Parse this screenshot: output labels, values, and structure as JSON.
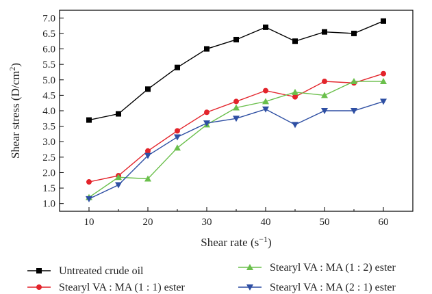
{
  "chart_data": {
    "type": "line",
    "xlabel": "Shear rate (s",
    "xlabel_sup": "−1",
    "xlabel_end": ")",
    "ylabel": "Shear stress (D/cm",
    "ylabel_sup": "2",
    "ylabel_end": ")",
    "xlim": [
      5,
      65
    ],
    "ylim": [
      0.75,
      7.25
    ],
    "x_ticks": [
      10,
      20,
      30,
      40,
      50,
      60
    ],
    "x_tick_labels": [
      "10",
      "20",
      "30",
      "40",
      "50",
      "60"
    ],
    "y_ticks": [
      1.0,
      1.5,
      2.0,
      2.5,
      3.0,
      3.5,
      4.0,
      4.5,
      5.0,
      5.5,
      6.0,
      6.5,
      7.0
    ],
    "y_tick_labels": [
      "1.0",
      "1.5",
      "2.0",
      "2.5",
      "3.0",
      "3.5",
      "4.0",
      "4.5",
      "5.0",
      "5.5",
      "6.0",
      "6.5",
      "7.0"
    ],
    "grid": false,
    "legend_position": "bottom",
    "x": [
      10,
      15,
      20,
      25,
      30,
      35,
      40,
      45,
      50,
      55,
      60
    ],
    "series": [
      {
        "name": "Untreated crude oil",
        "color": "#000000",
        "marker": "square",
        "values": [
          3.7,
          3.9,
          4.7,
          5.4,
          6.0,
          6.3,
          6.7,
          6.25,
          6.55,
          6.5,
          6.9
        ]
      },
      {
        "name": "Stearyl VA : MA (1 : 1) ester",
        "color": "#e3242b",
        "marker": "circle",
        "values": [
          1.7,
          1.9,
          2.7,
          3.35,
          3.95,
          4.3,
          4.65,
          4.45,
          4.95,
          4.9,
          5.2
        ]
      },
      {
        "name": "Stearyl VA : MA (1 : 2) ester",
        "color": "#6abf4b",
        "marker": "triangle-up",
        "values": [
          1.2,
          1.85,
          1.8,
          2.8,
          3.55,
          4.1,
          4.3,
          4.6,
          4.5,
          4.95,
          4.95
        ]
      },
      {
        "name": "Stearyl VA : MA (2 : 1) ester",
        "color": "#2e4fa3",
        "marker": "triangle-down",
        "values": [
          1.15,
          1.6,
          2.55,
          3.15,
          3.6,
          3.75,
          4.05,
          3.55,
          4.0,
          4.0,
          4.3
        ]
      }
    ]
  }
}
